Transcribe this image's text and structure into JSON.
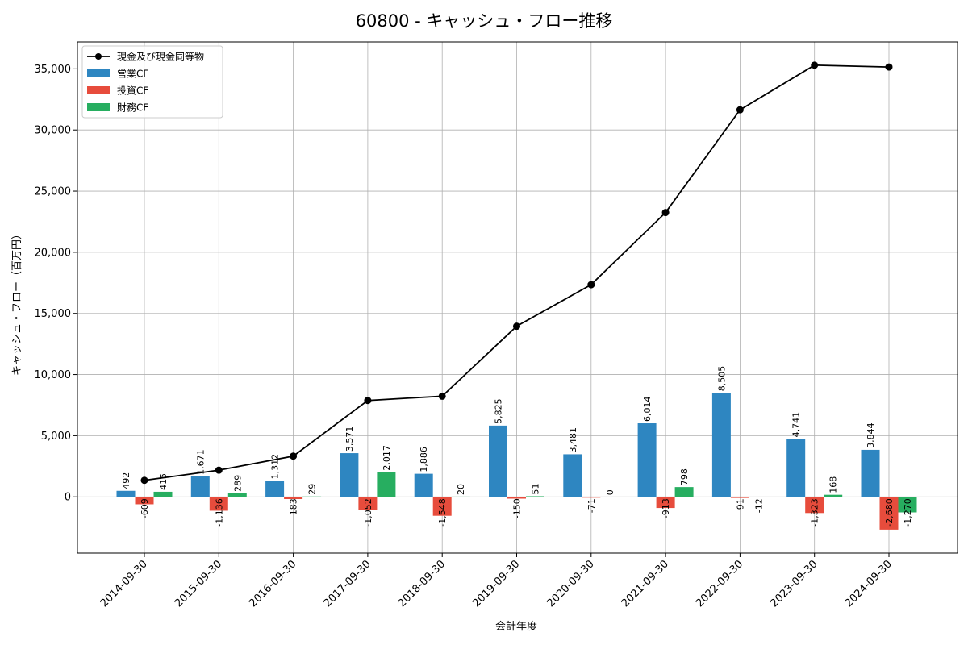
{
  "chart_data": {
    "type": "bar",
    "title": "60800 - キャッシュ・フロー推移",
    "xlabel": "会計年度",
    "ylabel": "キャッシュ・フロー（百万円）",
    "categories": [
      "2014-09-30",
      "2015-09-30",
      "2016-09-30",
      "2017-09-30",
      "2018-09-30",
      "2019-09-30",
      "2020-09-30",
      "2021-09-30",
      "2022-09-30",
      "2023-09-30",
      "2024-09-30"
    ],
    "ylim": [
      -4600,
      37200
    ],
    "yticks": [
      0,
      5000,
      10000,
      15000,
      20000,
      25000,
      30000,
      35000
    ],
    "ytick_labels": [
      "0",
      "5,000",
      "10,000",
      "15,000",
      "20,000",
      "25,000",
      "30,000",
      "35,000"
    ],
    "grid": true,
    "legend_position": "top-left",
    "series": [
      {
        "name": "営業CF",
        "kind": "bar",
        "color": "#2e86c1",
        "values": [
          492,
          1671,
          1312,
          3571,
          1886,
          5825,
          3481,
          6014,
          8505,
          4741,
          3844
        ],
        "labels": [
          "492",
          "1,671",
          "1,312",
          "3,571",
          "1,886",
          "5,825",
          "3,481",
          "6,014",
          "8,505",
          "4,741",
          "3,844"
        ]
      },
      {
        "name": "投資CF",
        "kind": "bar",
        "color": "#e74c3c",
        "values": [
          -609,
          -1136,
          -183,
          -1052,
          -1548,
          -150,
          -71,
          -913,
          -91,
          -1323,
          -2680
        ],
        "labels": [
          "-609",
          "-1,136",
          "-183",
          "-1,052",
          "-1,548",
          "-150",
          "-71",
          "-913",
          "-91",
          "-1,323",
          "-2,680"
        ]
      },
      {
        "name": "財務CF",
        "kind": "bar",
        "color": "#27ae60",
        "values": [
          415,
          289,
          29,
          2017,
          20,
          51,
          0,
          798,
          -12,
          168,
          -1270
        ],
        "labels": [
          "415",
          "289",
          "29",
          "2,017",
          "20",
          "51",
          "0",
          "798",
          "-12",
          "168",
          "-1,270"
        ]
      },
      {
        "name": "現金及び現金同等物",
        "kind": "line",
        "color": "#000000",
        "values": [
          1350,
          2180,
          3330,
          7880,
          8230,
          13950,
          17350,
          23250,
          31650,
          35300,
          35150
        ]
      }
    ]
  }
}
